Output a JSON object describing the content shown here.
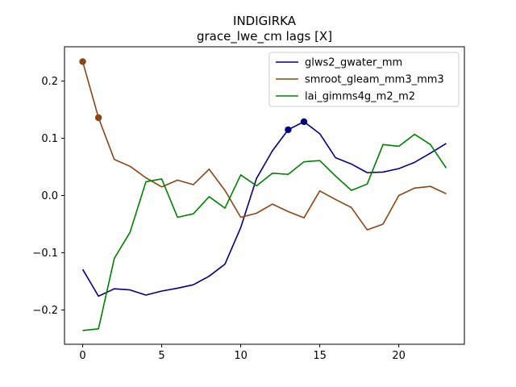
{
  "chart_data": {
    "type": "line",
    "title": "INDIGIRKA",
    "subtitle": "grace_lwe_cm lags [X]",
    "xlabel": "",
    "ylabel": "",
    "xlim": [
      -1.15,
      24.15
    ],
    "ylim": [
      -0.26,
      0.26
    ],
    "xticks": [
      0,
      5,
      10,
      15,
      20
    ],
    "yticks": [
      -0.2,
      -0.1,
      0.0,
      0.1,
      0.2
    ],
    "ytick_labels": [
      "−0.2",
      "−0.1",
      "0.0",
      "0.1",
      "0.2"
    ],
    "grid": false,
    "legend_position": "upper right",
    "x": [
      0,
      1,
      2,
      3,
      4,
      5,
      6,
      7,
      8,
      9,
      10,
      11,
      12,
      13,
      14,
      15,
      16,
      17,
      18,
      19,
      20,
      21,
      22,
      23
    ],
    "series": [
      {
        "name": "glws2_gwater_mm",
        "color": "#000080",
        "values": [
          -0.129,
          -0.176,
          -0.163,
          -0.165,
          -0.174,
          -0.167,
          -0.162,
          -0.156,
          -0.141,
          -0.12,
          -0.056,
          0.03,
          0.078,
          0.115,
          0.129,
          0.108,
          0.066,
          0.055,
          0.04,
          0.041,
          0.047,
          0.058,
          0.074,
          0.091
        ],
        "highlight_x": [
          13,
          14
        ]
      },
      {
        "name": "smroot_gleam_mm3_mm3",
        "color": "#8B4513",
        "values": [
          0.234,
          0.136,
          0.063,
          0.051,
          0.031,
          0.015,
          0.027,
          0.019,
          0.046,
          0.009,
          -0.038,
          -0.031,
          -0.015,
          -0.028,
          -0.039,
          0.008,
          -0.007,
          -0.021,
          -0.06,
          -0.05,
          0.0,
          0.013,
          0.016,
          0.003
        ],
        "highlight_x": [
          0,
          1
        ]
      },
      {
        "name": "lai_gimms4g_m2_m2",
        "color": "#008000",
        "values": [
          -0.236,
          -0.233,
          -0.11,
          -0.064,
          0.024,
          0.029,
          -0.038,
          -0.032,
          -0.002,
          -0.022,
          0.036,
          0.017,
          0.039,
          0.037,
          0.059,
          0.061,
          0.034,
          0.009,
          0.02,
          0.089,
          0.086,
          0.107,
          0.089,
          0.048
        ],
        "highlight_x": []
      }
    ]
  }
}
